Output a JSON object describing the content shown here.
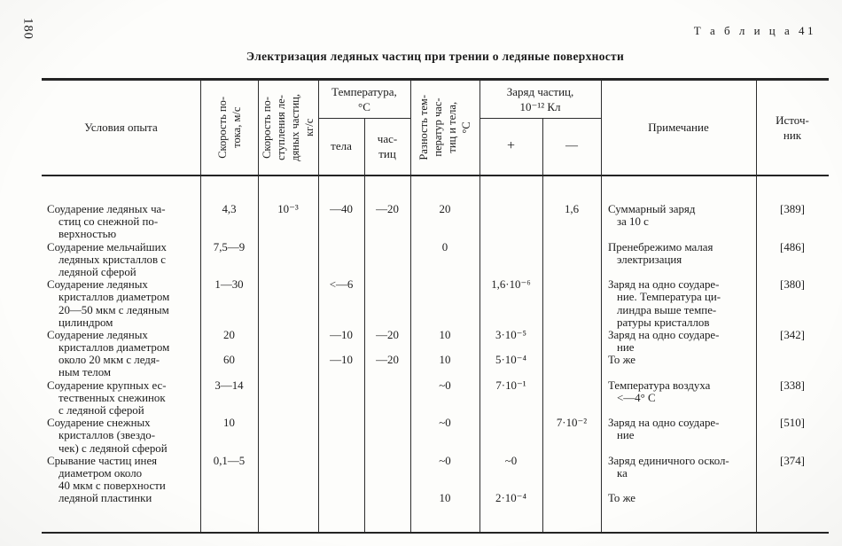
{
  "page": {
    "number": "180",
    "table_label": "Т а б л и ц а  41",
    "title": "Электризация ледяных частиц при трении о ледяные поверхности"
  },
  "header": {
    "conditions": "Условия опыта",
    "flow_speed": "Скорость по-\nтока, м/с",
    "supply_speed": "Скорость по-\nступления ле-\nдяных частиц,\nкг/с",
    "temperature_group": "Температура,\n°С",
    "temp_body": "тела",
    "temp_particles": "час-\nтиц",
    "temp_diff": "Разность тем-\nператур час-\nтиц и тела,\n°С",
    "charge_group": "Заряд частиц,\n10⁻¹² Кл",
    "charge_plus": "+",
    "charge_minus": "—",
    "note": "Примечание",
    "source": "Источ-\nник"
  },
  "table": {
    "lines": [
      {
        "cond": "Соударение ледяных ча-",
        "flow": "4,3",
        "sup": "10⁻³",
        "tb": "—40",
        "tp": "—20",
        "dt": "20",
        "plus": "",
        "minus": "1,6",
        "note": "Суммарный заряд",
        "src": "[389]"
      },
      {
        "cond": "стиц со снежной по-",
        "ci": 1,
        "note": "за 10 с",
        "ni": 1
      },
      {
        "cond": "верхностью",
        "ci": 1
      },
      {
        "cond": "Соударение мельчайших",
        "flow": "7,5—9",
        "dt": "0",
        "note": "Пренебрежимо малая",
        "src": "[486]"
      },
      {
        "cond": "ледяных кристаллов с",
        "ci": 1,
        "note": "электризация",
        "ni": 1
      },
      {
        "cond": "ледяной сферой",
        "ci": 1
      },
      {
        "cond": "Соударение ледяных",
        "flow": "1—30",
        "tb": "<—6",
        "plus": "1,6·10⁻⁶",
        "note": "Заряд на одно соударе-",
        "src": "[380]"
      },
      {
        "cond": "кристаллов диаметром",
        "ci": 1,
        "note": "ние. Температура ци-",
        "ni": 1
      },
      {
        "cond": "20—50 мкм с ледяным",
        "ci": 1,
        "note": "линдра выше темпе-",
        "ni": 1
      },
      {
        "cond": "цилиндром",
        "ci": 1,
        "note": "ратуры кристаллов",
        "ni": 1
      },
      {
        "cond": "Соударение ледяных",
        "flow": "20",
        "tb": "—10",
        "tp": "—20",
        "dt": "10",
        "plus": "3·10⁻⁵",
        "note": "Заряд на одно соударе-",
        "src": "[342]"
      },
      {
        "cond": "кристаллов диаметром",
        "ci": 1,
        "note": "ние",
        "ni": 1
      },
      {
        "cond": "около 20 мкм с ледя-",
        "ci": 1,
        "flow": "60",
        "tb": "—10",
        "tp": "—20",
        "dt": "10",
        "plus": "5·10⁻⁴",
        "note": "То же"
      },
      {
        "cond": "ным телом",
        "ci": 1
      },
      {
        "cond": "Соударение крупных ес-",
        "flow": "3—14",
        "dt": "~0",
        "plus": "7·10⁻¹",
        "note": "Температура воздуха",
        "src": "[338]"
      },
      {
        "cond": "тественных снежинок",
        "ci": 1,
        "note": "<—4° С",
        "ni": 1
      },
      {
        "cond": "с ледяной сферой",
        "ci": 1
      },
      {
        "cond": "Соударение снежных",
        "flow": "10",
        "dt": "~0",
        "minus": "7·10⁻²",
        "note": "Заряд на одно соударе-",
        "src": "[510]"
      },
      {
        "cond": "кристаллов (звездо-",
        "ci": 1,
        "note": "ние",
        "ni": 1
      },
      {
        "cond": "чек) с ледяной сферой",
        "ci": 1
      },
      {
        "cond": "Срывание частиц инея",
        "flow": "0,1—5",
        "dt": "~0",
        "plus": "~0",
        "note": "Заряд единичного оскол-",
        "src": "[374]"
      },
      {
        "cond": "диаметром около",
        "ci": 1,
        "note": "ка",
        "ni": 1
      },
      {
        "cond": "40 мкм с поверхности",
        "ci": 1
      },
      {
        "cond": "ледяной пластинки",
        "ci": 1,
        "dt": "10",
        "plus": "2·10⁻⁴",
        "note": "То же"
      }
    ]
  }
}
